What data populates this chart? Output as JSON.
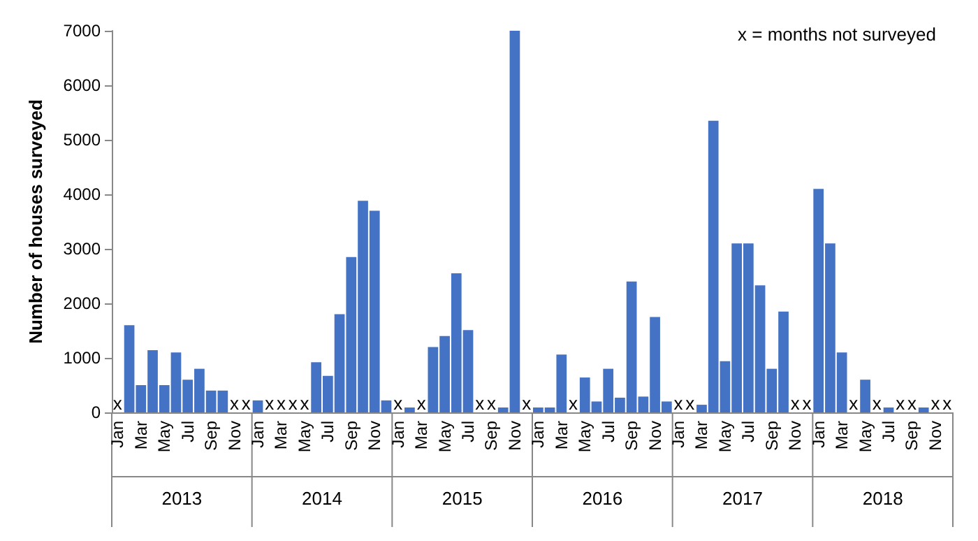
{
  "chart_data": {
    "type": "bar",
    "ylabel": "Number of houses surveyed",
    "color": "#4472c4",
    "categories": [
      "Jan",
      null,
      "Mar",
      null,
      "May",
      null,
      "Jul",
      null,
      "Sep",
      null,
      "Nov",
      null,
      "Jan",
      null,
      "Mar",
      null,
      "May",
      null,
      "Jul",
      null,
      "Sep",
      null,
      "Nov",
      null,
      "Jan",
      null,
      "Mar",
      null,
      "May",
      null,
      "Jul",
      null,
      "Sep",
      null,
      "Nov",
      null,
      "Jan",
      null,
      "Mar",
      null,
      "May",
      null,
      "Jul",
      null,
      "Sep",
      null,
      "Nov",
      null,
      "Jan",
      null,
      "Mar",
      null,
      "May",
      null,
      "Jul",
      null,
      "Sep",
      null,
      "Nov",
      null,
      "Jan",
      null,
      "Mar",
      null,
      "May",
      null,
      "Jul",
      null,
      "Sep",
      null,
      "Nov",
      null
    ],
    "values": [
      null,
      1600,
      500,
      1140,
      500,
      1100,
      600,
      800,
      400,
      400,
      null,
      null,
      220,
      null,
      null,
      null,
      null,
      920,
      670,
      1800,
      2850,
      3880,
      3700,
      220,
      null,
      90,
      null,
      1200,
      1400,
      2550,
      1510,
      null,
      null,
      90,
      7000,
      null,
      90,
      90,
      1060,
      null,
      640,
      200,
      800,
      270,
      2400,
      290,
      1750,
      200,
      null,
      null,
      140,
      5350,
      940,
      3100,
      3100,
      2330,
      800,
      1850,
      null,
      null,
      4100,
      3100,
      1100,
      null,
      600,
      null,
      90,
      null,
      null,
      90,
      null,
      null
    ],
    "value_labels": [
      "x",
      null,
      null,
      null,
      null,
      null,
      null,
      null,
      null,
      null,
      "x",
      "x",
      null,
      "x",
      "x",
      "x",
      "x",
      null,
      null,
      null,
      null,
      null,
      null,
      null,
      "x",
      null,
      "x",
      null,
      null,
      null,
      null,
      "x",
      "x",
      null,
      null,
      "x",
      null,
      null,
      null,
      "x",
      null,
      null,
      null,
      null,
      null,
      null,
      null,
      null,
      "x",
      "x",
      null,
      null,
      null,
      null,
      null,
      null,
      null,
      null,
      "x",
      "x",
      null,
      null,
      null,
      "x",
      null,
      "x",
      null,
      "x",
      "x",
      null,
      "x",
      "x"
    ],
    "ylim": [
      0,
      7000
    ],
    "yticks": [
      0,
      1000,
      2000,
      3000,
      4000,
      5000,
      6000,
      7000
    ],
    "grid": false,
    "annotations": [
      "x = months not surveyed",
      "2013",
      "2014",
      "2015",
      "2016",
      "2017",
      "2018"
    ]
  }
}
